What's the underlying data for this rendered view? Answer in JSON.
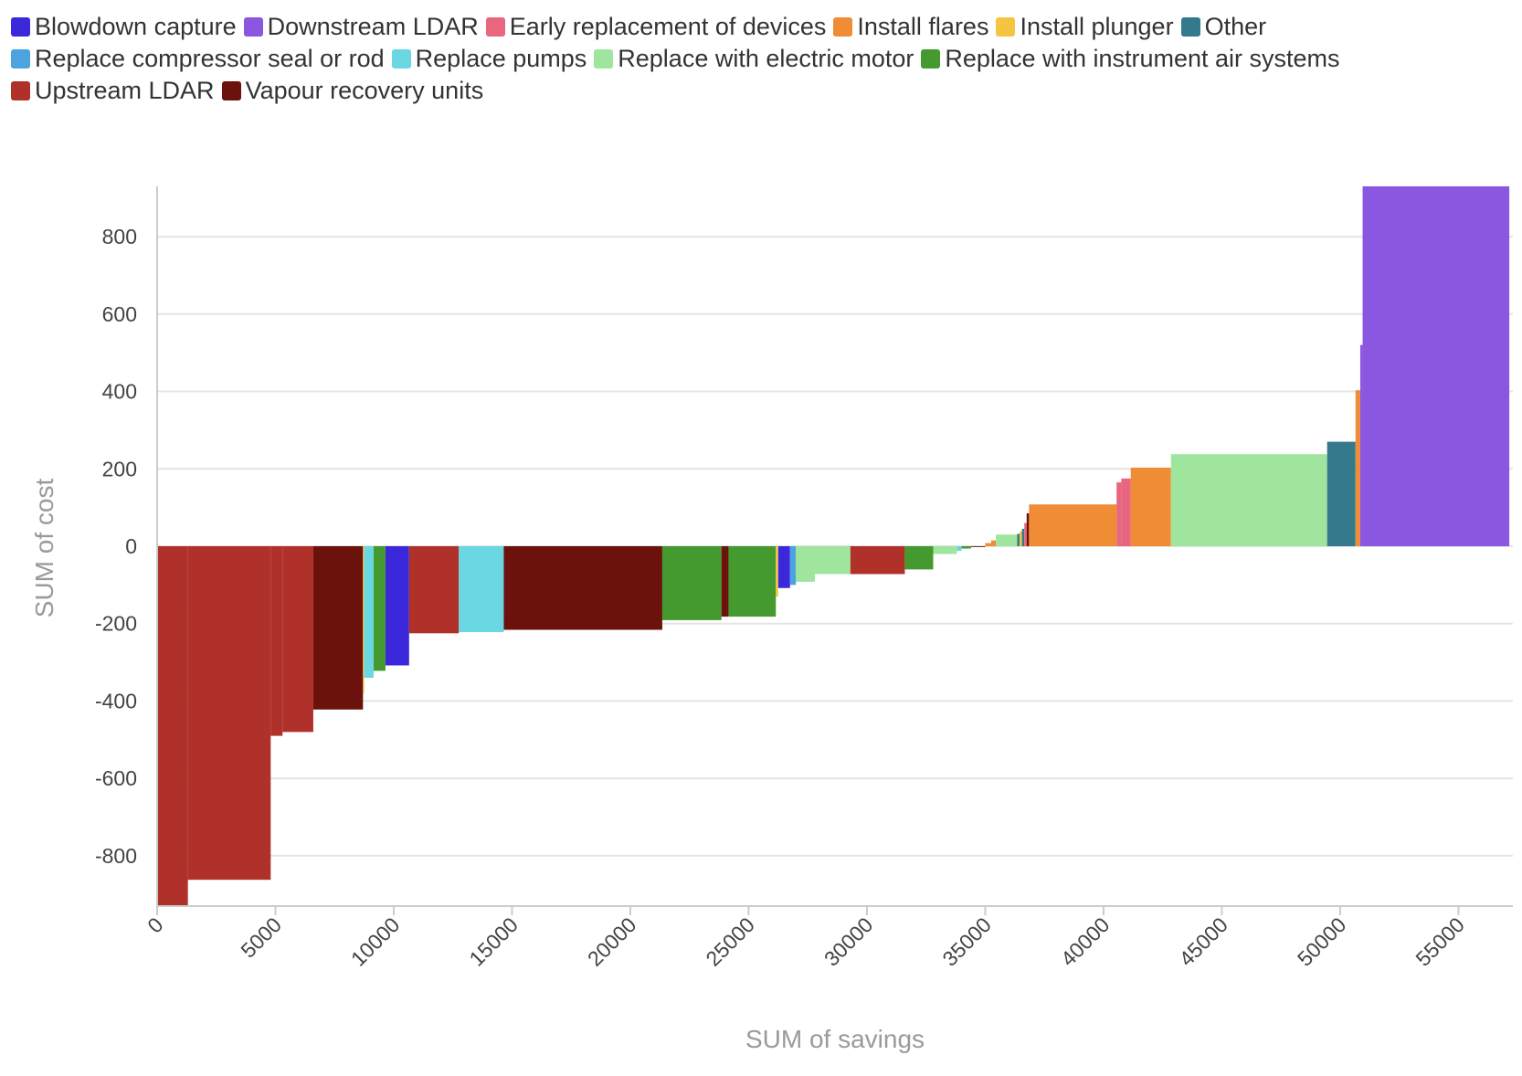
{
  "chart_data": {
    "type": "bar",
    "variant": "variable-width cost curve",
    "xlabel": "SUM of savings",
    "ylabel": "SUM of cost",
    "xlim": [
      0,
      57300
    ],
    "ylim": [
      -930,
      930
    ],
    "xticks": [
      0,
      5000,
      10000,
      15000,
      20000,
      25000,
      30000,
      35000,
      40000,
      45000,
      50000,
      55000
    ],
    "yticks": [
      800,
      600,
      400,
      200,
      0,
      -200,
      -400,
      -600,
      -800
    ],
    "grid": true,
    "legend_position": "top",
    "categories": [
      {
        "name": "Blowdown capture",
        "color": "#3b28dc"
      },
      {
        "name": "Downstream LDAR",
        "color": "#8b56e0"
      },
      {
        "name": "Early replacement of devices",
        "color": "#e8677f"
      },
      {
        "name": "Install flares",
        "color": "#ef8c35"
      },
      {
        "name": "Install plunger",
        "color": "#f5c542"
      },
      {
        "name": "Other",
        "color": "#357a8c"
      },
      {
        "name": "Replace compressor seal or rod",
        "color": "#4da3e0"
      },
      {
        "name": "Replace pumps",
        "color": "#6ad7e3"
      },
      {
        "name": "Replace with electric motor",
        "color": "#9fe59d"
      },
      {
        "name": "Replace with instrument air systems",
        "color": "#449a2e"
      },
      {
        "name": "Upstream LDAR",
        "color": "#b0302a"
      },
      {
        "name": "Vapour recovery units",
        "color": "#6b120d"
      }
    ],
    "bars": [
      {
        "category": "Upstream LDAR",
        "savings": 1300,
        "cost": -930
      },
      {
        "category": "Upstream LDAR",
        "savings": 3500,
        "cost": -862
      },
      {
        "category": "Upstream LDAR",
        "savings": 500,
        "cost": -490
      },
      {
        "category": "Upstream LDAR",
        "savings": 1300,
        "cost": -480
      },
      {
        "category": "Vapour recovery units",
        "savings": 2100,
        "cost": -422
      },
      {
        "category": "Install plunger",
        "savings": 50,
        "cost": -380
      },
      {
        "category": "Replace pumps",
        "savings": 400,
        "cost": -340
      },
      {
        "category": "Replace with instrument air systems",
        "savings": 500,
        "cost": -322
      },
      {
        "category": "Blowdown capture",
        "savings": 1000,
        "cost": -308
      },
      {
        "category": "Upstream LDAR",
        "savings": 2100,
        "cost": -225
      },
      {
        "category": "Replace pumps",
        "savings": 1900,
        "cost": -222
      },
      {
        "category": "Vapour recovery units",
        "savings": 6700,
        "cost": -216
      },
      {
        "category": "Replace with instrument air systems",
        "savings": 2500,
        "cost": -191
      },
      {
        "category": "Vapour recovery units",
        "savings": 300,
        "cost": -182
      },
      {
        "category": "Replace with instrument air systems",
        "savings": 2000,
        "cost": -182
      },
      {
        "category": "Install plunger",
        "savings": 100,
        "cost": -130
      },
      {
        "category": "Blowdown capture",
        "savings": 500,
        "cost": -108
      },
      {
        "category": "Replace compressor seal or rod",
        "savings": 250,
        "cost": -100
      },
      {
        "category": "Replace with electric motor",
        "savings": 800,
        "cost": -92
      },
      {
        "category": "Replace with electric motor",
        "savings": 1500,
        "cost": -72
      },
      {
        "category": "Upstream LDAR",
        "savings": 2300,
        "cost": -72
      },
      {
        "category": "Replace with instrument air systems",
        "savings": 1200,
        "cost": -60
      },
      {
        "category": "Replace with electric motor",
        "savings": 1000,
        "cost": -20
      },
      {
        "category": "Replace pumps",
        "savings": 200,
        "cost": -12
      },
      {
        "category": "Replace with instrument air systems",
        "savings": 400,
        "cost": -6
      },
      {
        "category": "Vapour recovery units",
        "savings": 600,
        "cost": -2
      },
      {
        "category": "Install flares",
        "savings": 250,
        "cost": 8
      },
      {
        "category": "Install flares",
        "savings": 200,
        "cost": 15
      },
      {
        "category": "Replace with electric motor",
        "savings": 900,
        "cost": 30
      },
      {
        "category": "Other",
        "savings": 100,
        "cost": 32
      },
      {
        "category": "Install plunger",
        "savings": 100,
        "cost": 38
      },
      {
        "category": "Other",
        "savings": 100,
        "cost": 45
      },
      {
        "category": "Early replacement of devices",
        "savings": 100,
        "cost": 60
      },
      {
        "category": "Vapour recovery units",
        "savings": 100,
        "cost": 85
      },
      {
        "category": "Install flares",
        "savings": 3700,
        "cost": 108
      },
      {
        "category": "Early replacement of devices",
        "savings": 200,
        "cost": 165
      },
      {
        "category": "Early replacement of devices",
        "savings": 400,
        "cost": 175
      },
      {
        "category": "Install flares",
        "savings": 1700,
        "cost": 203
      },
      {
        "category": "Replace with electric motor",
        "savings": 6600,
        "cost": 238
      },
      {
        "category": "Other",
        "savings": 1200,
        "cost": 270
      },
      {
        "category": "Install flares",
        "savings": 200,
        "cost": 403
      },
      {
        "category": "Downstream LDAR",
        "savings": 100,
        "cost": 520
      },
      {
        "category": "Downstream LDAR",
        "savings": 6200,
        "cost": 930
      }
    ]
  }
}
